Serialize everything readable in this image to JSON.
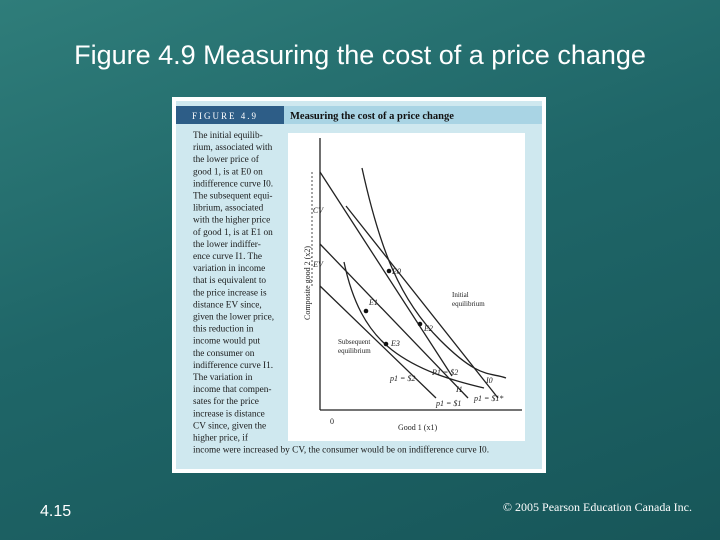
{
  "title": "Figure 4.9 Measuring the cost of a price change",
  "figure": {
    "label": "FIGURE 4.9",
    "heading": "Measuring the cost of a price change",
    "caption_lines": [
      "The initial equilib-",
      "rium, associated with",
      "the lower price of",
      "good 1, is at E0 on",
      "indifference curve I0.",
      "The subsequent equi-",
      "librium, associated",
      "with the higher price",
      "of good 1, is at E1 on",
      "the lower indiffer-",
      "ence curve I1. The",
      "variation in income",
      "that is equivalent to",
      "the price increase is",
      "distance EV since,",
      "given the lower price,",
      "this reduction in",
      "income would put",
      "the consumer on",
      "indifference curve I1.",
      "The variation in",
      "income that compen-",
      "sates for the price",
      "increase is distance",
      "CV since, given the",
      "higher price, if",
      "income were increased by CV, the consumer would be on indifference curve I0."
    ],
    "diagram": {
      "y_axis": "Composite good 2 (x2)",
      "x_axis": "Good 1 (x1)",
      "origin": "0",
      "cv": "CV",
      "ev": "EV",
      "points": [
        "E0",
        "E1",
        "E2",
        "E3"
      ],
      "initial": [
        "Initial",
        "equilibrium"
      ],
      "subsequent": [
        "Subsequent",
        "equilibrium"
      ],
      "price_labels": [
        "P1 = $2",
        "p1 = $2",
        "p1 = $1",
        "p1 = $1*"
      ],
      "curves": [
        "I0",
        "I1"
      ]
    }
  },
  "footer": {
    "page": "4.15",
    "copyright": "© 2005 Pearson Education Canada Inc."
  }
}
